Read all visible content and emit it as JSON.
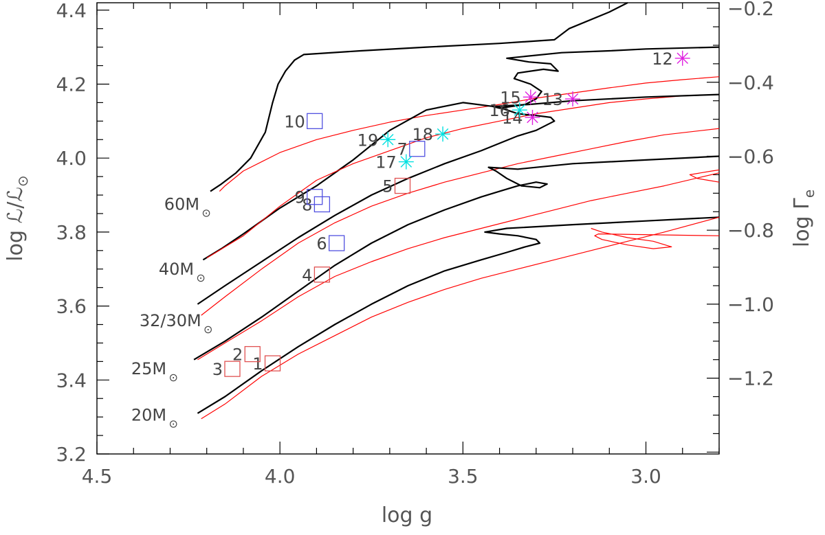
{
  "chart_data": {
    "type": "scatter",
    "title": "",
    "xlabel": "log g",
    "ylabel": "log ℒ/ℒ",
    "ylabel_sub": "⊙",
    "y2label": "log Γ",
    "y2label_sub": "e",
    "xlim": [
      4.5,
      2.8
    ],
    "ylim": [
      3.2,
      4.42
    ],
    "y2lim": [
      -1.405,
      -0.185
    ],
    "x_ticks": [
      4.5,
      4.0,
      3.5,
      3.0
    ],
    "x_tick_labels": [
      "4.5",
      "4.0",
      "3.5",
      "3.0"
    ],
    "y_ticks": [
      3.2,
      3.4,
      3.6,
      3.8,
      4.0,
      4.2,
      4.4
    ],
    "y_tick_labels": [
      "3.2",
      "3.4",
      "3.6",
      "3.8",
      "4.0",
      "4.2",
      "4.4"
    ],
    "y2_ticks": [
      -1.2,
      -1.0,
      -0.8,
      -0.6,
      -0.4,
      -0.2
    ],
    "y2_tick_labels": [
      "−1.2",
      "−1.0",
      "−0.8",
      "−0.6",
      "−0.4",
      "−0.2"
    ],
    "mass_labels": [
      {
        "text": "60M",
        "x": 4.22,
        "y": 3.86
      },
      {
        "text": "40M",
        "x": 4.235,
        "y": 3.685
      },
      {
        "text": "32/30M",
        "x": 4.215,
        "y": 3.545
      },
      {
        "text": "25M",
        "x": 4.31,
        "y": 3.415
      },
      {
        "text": "20M",
        "x": 4.31,
        "y": 3.29
      }
    ],
    "series": [
      {
        "name": "track-60M-black",
        "color": "#000000",
        "width": 2.2,
        "points": [
          [
            4.19,
            3.91
          ],
          [
            4.16,
            3.93
          ],
          [
            4.12,
            3.96
          ],
          [
            4.08,
            4.0
          ],
          [
            4.04,
            4.07
          ],
          [
            4.02,
            4.15
          ],
          [
            4.005,
            4.2
          ],
          [
            3.985,
            4.235
          ],
          [
            3.96,
            4.265
          ],
          [
            3.935,
            4.28
          ],
          [
            3.78,
            4.29
          ],
          [
            3.6,
            4.3
          ],
          [
            3.4,
            4.31
          ],
          [
            3.25,
            4.32
          ],
          [
            3.21,
            4.35
          ],
          [
            3.1,
            4.395
          ],
          [
            3.05,
            4.42
          ]
        ]
      },
      {
        "name": "track-60M-red",
        "color": "#ff0000",
        "width": 1.2,
        "points": [
          [
            4.165,
            3.91
          ],
          [
            4.15,
            3.925
          ],
          [
            4.1,
            3.965
          ],
          [
            4.0,
            4.015
          ],
          [
            3.9,
            4.05
          ],
          [
            3.8,
            4.075
          ],
          [
            3.7,
            4.097
          ],
          [
            3.6,
            4.115
          ],
          [
            3.5,
            4.13
          ],
          [
            3.4,
            4.145
          ],
          [
            3.3,
            4.162
          ],
          [
            3.2,
            4.176
          ],
          [
            3.1,
            4.19
          ],
          [
            3.0,
            4.203
          ],
          [
            2.9,
            4.212
          ],
          [
            2.8,
            4.22
          ]
        ]
      },
      {
        "name": "track-40M-black",
        "color": "#000000",
        "width": 2.2,
        "points": [
          [
            4.21,
            3.725
          ],
          [
            4.16,
            3.755
          ],
          [
            4.1,
            3.795
          ],
          [
            4.0,
            3.865
          ],
          [
            3.9,
            3.925
          ],
          [
            3.8,
            3.995
          ],
          [
            3.7,
            4.075
          ],
          [
            3.6,
            4.13
          ],
          [
            3.5,
            4.15
          ],
          [
            3.42,
            4.14
          ],
          [
            3.4,
            4.135
          ],
          [
            3.33,
            4.145
          ],
          [
            3.3,
            4.16
          ],
          [
            3.285,
            4.18
          ],
          [
            3.315,
            4.2
          ],
          [
            3.36,
            4.215
          ],
          [
            3.35,
            4.23
          ],
          [
            3.28,
            4.24
          ],
          [
            3.24,
            4.235
          ],
          [
            3.26,
            4.255
          ],
          [
            3.32,
            4.26
          ],
          [
            3.38,
            4.27
          ],
          [
            3.23,
            4.285
          ],
          [
            3.1,
            4.29
          ],
          [
            3.0,
            4.295
          ],
          [
            2.8,
            4.3
          ]
        ]
      },
      {
        "name": "track-40M-red",
        "color": "#ff0000",
        "width": 1.2,
        "points": [
          [
            4.2,
            3.73
          ],
          [
            4.1,
            3.79
          ],
          [
            4.0,
            3.87
          ],
          [
            3.9,
            3.94
          ],
          [
            3.8,
            3.985
          ],
          [
            3.7,
            4.02
          ],
          [
            3.6,
            4.055
          ],
          [
            3.5,
            4.08
          ],
          [
            3.4,
            4.1
          ],
          [
            3.3,
            4.12
          ],
          [
            3.2,
            4.135
          ],
          [
            3.1,
            4.15
          ],
          [
            3.0,
            4.16
          ],
          [
            2.9,
            4.168
          ],
          [
            2.8,
            4.172
          ]
        ]
      },
      {
        "name": "track-32M-black",
        "color": "#000000",
        "width": 2.2,
        "points": [
          [
            4.225,
            3.605
          ],
          [
            4.15,
            3.655
          ],
          [
            4.05,
            3.72
          ],
          [
            3.95,
            3.785
          ],
          [
            3.85,
            3.845
          ],
          [
            3.75,
            3.9
          ],
          [
            3.65,
            3.945
          ],
          [
            3.55,
            3.985
          ],
          [
            3.45,
            4.02
          ],
          [
            3.4,
            4.04
          ],
          [
            3.35,
            4.06
          ],
          [
            3.3,
            4.075
          ],
          [
            3.27,
            4.09
          ],
          [
            3.25,
            4.1
          ],
          [
            3.26,
            4.11
          ],
          [
            3.3,
            4.115
          ],
          [
            3.35,
            4.12
          ],
          [
            3.41,
            4.14
          ],
          [
            3.32,
            4.145
          ],
          [
            3.2,
            4.155
          ],
          [
            3.0,
            4.165
          ],
          [
            2.8,
            4.172
          ]
        ]
      },
      {
        "name": "track-30M-red",
        "color": "#ff0000",
        "width": 1.2,
        "points": [
          [
            4.215,
            3.575
          ],
          [
            4.15,
            3.625
          ],
          [
            4.05,
            3.7
          ],
          [
            3.95,
            3.77
          ],
          [
            3.85,
            3.825
          ],
          [
            3.75,
            3.87
          ],
          [
            3.65,
            3.905
          ],
          [
            3.55,
            3.935
          ],
          [
            3.45,
            3.96
          ],
          [
            3.35,
            3.985
          ],
          [
            3.25,
            4.005
          ],
          [
            3.15,
            4.025
          ],
          [
            3.05,
            4.045
          ],
          [
            2.95,
            4.063
          ],
          [
            2.8,
            4.08
          ]
        ]
      },
      {
        "name": "track-25M-black",
        "color": "#000000",
        "width": 2.2,
        "points": [
          [
            4.235,
            3.455
          ],
          [
            4.15,
            3.505
          ],
          [
            4.05,
            3.57
          ],
          [
            3.95,
            3.64
          ],
          [
            3.85,
            3.71
          ],
          [
            3.75,
            3.77
          ],
          [
            3.65,
            3.82
          ],
          [
            3.55,
            3.86
          ],
          [
            3.45,
            3.895
          ],
          [
            3.4,
            3.91
          ],
          [
            3.35,
            3.925
          ],
          [
            3.3,
            3.935
          ],
          [
            3.27,
            3.93
          ],
          [
            3.29,
            3.92
          ],
          [
            3.34,
            3.925
          ],
          [
            3.38,
            3.945
          ],
          [
            3.41,
            3.965
          ],
          [
            3.43,
            3.975
          ],
          [
            3.35,
            3.97
          ],
          [
            3.2,
            3.985
          ],
          [
            3.0,
            3.995
          ],
          [
            2.8,
            4.005
          ]
        ]
      },
      {
        "name": "track-25M-red",
        "color": "#ff0000",
        "width": 1.2,
        "points": [
          [
            4.225,
            3.455
          ],
          [
            4.15,
            3.5
          ],
          [
            4.05,
            3.56
          ],
          [
            3.95,
            3.625
          ],
          [
            3.85,
            3.68
          ],
          [
            3.75,
            3.72
          ],
          [
            3.65,
            3.755
          ],
          [
            3.55,
            3.785
          ],
          [
            3.45,
            3.81
          ],
          [
            3.35,
            3.835
          ],
          [
            3.25,
            3.86
          ],
          [
            3.15,
            3.885
          ],
          [
            3.05,
            3.905
          ],
          [
            2.95,
            3.925
          ],
          [
            2.8,
            3.96
          ]
        ]
      },
      {
        "name": "track-25M-red-loop",
        "color": "#ff0000",
        "width": 1.2,
        "points": [
          [
            2.8,
            3.935
          ],
          [
            2.83,
            3.94
          ],
          [
            2.86,
            3.945
          ],
          [
            2.88,
            3.955
          ],
          [
            2.85,
            3.96
          ],
          [
            2.82,
            3.965
          ],
          [
            2.8,
            3.968
          ]
        ]
      },
      {
        "name": "track-20M-black",
        "color": "#000000",
        "width": 2.2,
        "points": [
          [
            4.225,
            3.31
          ],
          [
            4.15,
            3.355
          ],
          [
            4.05,
            3.425
          ],
          [
            3.95,
            3.49
          ],
          [
            3.85,
            3.55
          ],
          [
            3.75,
            3.605
          ],
          [
            3.65,
            3.655
          ],
          [
            3.55,
            3.695
          ],
          [
            3.45,
            3.725
          ],
          [
            3.38,
            3.745
          ],
          [
            3.33,
            3.76
          ],
          [
            3.29,
            3.77
          ],
          [
            3.3,
            3.78
          ],
          [
            3.35,
            3.79
          ],
          [
            3.4,
            3.795
          ],
          [
            3.44,
            3.8
          ],
          [
            3.38,
            3.81
          ],
          [
            3.2,
            3.82
          ],
          [
            3.0,
            3.83
          ],
          [
            2.8,
            3.84
          ]
        ]
      },
      {
        "name": "track-20M-red",
        "color": "#ff0000",
        "width": 1.2,
        "points": [
          [
            4.215,
            3.295
          ],
          [
            4.15,
            3.335
          ],
          [
            4.05,
            3.41
          ],
          [
            3.95,
            3.47
          ],
          [
            3.85,
            3.52
          ],
          [
            3.75,
            3.57
          ],
          [
            3.65,
            3.61
          ],
          [
            3.55,
            3.645
          ],
          [
            3.45,
            3.675
          ],
          [
            3.35,
            3.7
          ],
          [
            3.25,
            3.725
          ],
          [
            3.15,
            3.75
          ],
          [
            3.05,
            3.775
          ],
          [
            2.95,
            3.8
          ],
          [
            2.8,
            3.84
          ]
        ]
      },
      {
        "name": "track-20M-red-loop",
        "color": "#ff0000",
        "width": 1.2,
        "points": [
          [
            3.15,
            3.81
          ],
          [
            3.12,
            3.8
          ],
          [
            3.05,
            3.785
          ],
          [
            2.98,
            3.775
          ],
          [
            2.93,
            3.76
          ],
          [
            2.98,
            3.755
          ],
          [
            3.05,
            3.765
          ],
          [
            3.12,
            3.78
          ],
          [
            3.14,
            3.79
          ],
          [
            3.13,
            3.795
          ],
          [
            2.8,
            3.79
          ]
        ]
      }
    ],
    "points": [
      {
        "label": "1",
        "x": 4.02,
        "y": 3.445,
        "marker": "square",
        "color": "#e05050",
        "label_dx": -1,
        "label_dy": 0
      },
      {
        "label": "2",
        "x": 4.075,
        "y": 3.47,
        "marker": "square",
        "color": "#e05050",
        "label_dx": -1,
        "label_dy": 0
      },
      {
        "label": "3",
        "x": 4.13,
        "y": 3.43,
        "marker": "square",
        "color": "#e05050",
        "label_dx": -1,
        "label_dy": 0
      },
      {
        "label": "4",
        "x": 3.885,
        "y": 3.685,
        "marker": "square",
        "color": "#e05050",
        "label_dx": -1,
        "label_dy": 0
      },
      {
        "label": "5",
        "x": 3.665,
        "y": 3.925,
        "marker": "square",
        "color": "#e05050",
        "label_dx": -1,
        "label_dy": 0
      },
      {
        "label": "6",
        "x": 3.845,
        "y": 3.77,
        "marker": "square",
        "color": "#5050e0",
        "label_dx": -1,
        "label_dy": 0
      },
      {
        "label": "7",
        "x": 3.625,
        "y": 4.025,
        "marker": "square",
        "color": "#5050e0",
        "label_dx": -1,
        "label_dy": 0
      },
      {
        "label": "8",
        "x": 3.885,
        "y": 3.875,
        "marker": "square",
        "color": "#5050e0",
        "label_dx": -1,
        "label_dy": 0
      },
      {
        "label": "9",
        "x": 3.905,
        "y": 3.895,
        "marker": "square",
        "color": "#5050e0",
        "label_dx": -1,
        "label_dy": 0
      },
      {
        "label": "10",
        "x": 3.905,
        "y": 4.1,
        "marker": "square",
        "color": "#5050e0",
        "label_dx": -1,
        "label_dy": 0
      },
      {
        "label": "12",
        "x": 2.9,
        "y": 4.27,
        "marker": "star",
        "color": "#e020e0",
        "label_dx": -1,
        "label_dy": 0
      },
      {
        "label": "13",
        "x": 3.2,
        "y": 4.16,
        "marker": "star",
        "color": "#e020e0",
        "label_dx": -1,
        "label_dy": 0
      },
      {
        "label": "14",
        "x": 3.31,
        "y": 4.11,
        "marker": "star",
        "color": "#e020e0",
        "label_dx": -1,
        "label_dy": 0
      },
      {
        "label": "15",
        "x": 3.315,
        "y": 4.165,
        "marker": "star",
        "color": "#e020e0",
        "label_dx": -1,
        "label_dy": 0
      },
      {
        "label": "16",
        "x": 3.345,
        "y": 4.13,
        "marker": "star",
        "color": "#00e0e0",
        "label_dx": -1,
        "label_dy": 0
      },
      {
        "label": "17",
        "x": 3.655,
        "y": 3.99,
        "marker": "star",
        "color": "#00e0e0",
        "label_dx": -1,
        "label_dy": 0
      },
      {
        "label": "18",
        "x": 3.555,
        "y": 4.065,
        "marker": "star",
        "color": "#00e0e0",
        "label_dx": -1,
        "label_dy": 0
      },
      {
        "label": "19",
        "x": 3.705,
        "y": 4.05,
        "marker": "star",
        "color": "#00e0e0",
        "label_dx": -1,
        "label_dy": 0
      }
    ],
    "sun_symbol": "⊙"
  }
}
